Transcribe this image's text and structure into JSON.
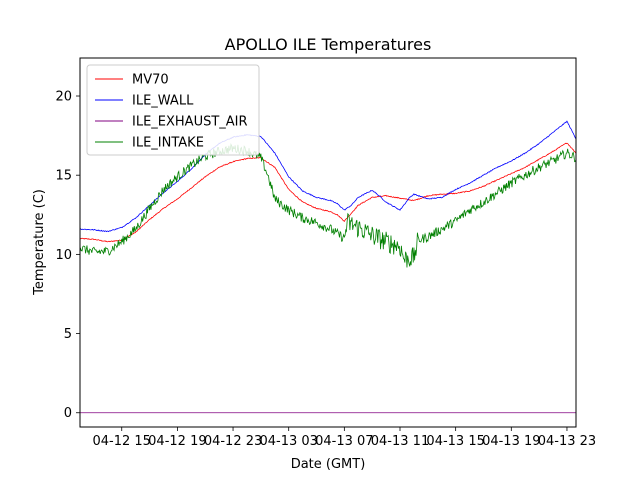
{
  "chart_data": {
    "type": "line",
    "title": "APOLLO ILE Temperatures",
    "xlabel": "Date (GMT)",
    "ylabel": "Temperature (C)",
    "x_unit": "hours since 04-12 12:00 GMT",
    "xlim": [
      0,
      35.65
    ],
    "ylim": [
      -0.9,
      22.4
    ],
    "x_ticks": [
      {
        "x": 3,
        "label": "04-12 15"
      },
      {
        "x": 7,
        "label": "04-12 19"
      },
      {
        "x": 11,
        "label": "04-12 23"
      },
      {
        "x": 15,
        "label": "04-13 03"
      },
      {
        "x": 19,
        "label": "04-13 07"
      },
      {
        "x": 23,
        "label": "04-13 11"
      },
      {
        "x": 27,
        "label": "04-13 15"
      },
      {
        "x": 31,
        "label": "04-13 19"
      },
      {
        "x": 35,
        "label": "04-13 23"
      }
    ],
    "y_ticks": [
      {
        "y": 0,
        "label": "0"
      },
      {
        "y": 5,
        "label": "5"
      },
      {
        "y": 10,
        "label": "10"
      },
      {
        "y": 15,
        "label": "15"
      },
      {
        "y": 20,
        "label": "20"
      }
    ],
    "legend_position": "top-left",
    "series": [
      {
        "name": "MV70",
        "color": "#ff0000",
        "noise": 0.03,
        "points": [
          [
            0,
            11.0
          ],
          [
            1,
            10.95
          ],
          [
            2,
            10.8
          ],
          [
            3,
            10.9
          ],
          [
            4,
            11.4
          ],
          [
            5,
            12.2
          ],
          [
            6,
            12.9
          ],
          [
            7,
            13.5
          ],
          [
            8,
            14.2
          ],
          [
            9,
            14.9
          ],
          [
            10,
            15.5
          ],
          [
            11,
            15.85
          ],
          [
            12,
            16.05
          ],
          [
            13,
            16.1
          ],
          [
            14,
            15.5
          ],
          [
            15,
            14.1
          ],
          [
            16,
            13.3
          ],
          [
            17,
            12.9
          ],
          [
            18,
            12.7
          ],
          [
            18.5,
            12.5
          ],
          [
            19,
            12.1
          ],
          [
            19.5,
            12.6
          ],
          [
            20,
            13.1
          ],
          [
            21,
            13.6
          ],
          [
            22,
            13.7
          ],
          [
            23,
            13.55
          ],
          [
            24,
            13.4
          ],
          [
            25,
            13.7
          ],
          [
            26,
            13.8
          ],
          [
            27,
            13.85
          ],
          [
            28,
            14.0
          ],
          [
            29,
            14.3
          ],
          [
            30,
            14.7
          ],
          [
            31,
            15.1
          ],
          [
            32,
            15.5
          ],
          [
            33,
            16.0
          ],
          [
            34,
            16.5
          ],
          [
            35,
            17.05
          ],
          [
            35.65,
            16.4
          ]
        ]
      },
      {
        "name": "ILE_WALL",
        "color": "#0000ff",
        "noise": 0.03,
        "points": [
          [
            0,
            11.6
          ],
          [
            1,
            11.55
          ],
          [
            2,
            11.45
          ],
          [
            3,
            11.7
          ],
          [
            4,
            12.3
          ],
          [
            5,
            13.1
          ],
          [
            6,
            13.9
          ],
          [
            7,
            14.6
          ],
          [
            8,
            15.4
          ],
          [
            9,
            16.3
          ],
          [
            10,
            17.0
          ],
          [
            11,
            17.4
          ],
          [
            12,
            17.55
          ],
          [
            13,
            17.45
          ],
          [
            14,
            16.4
          ],
          [
            15,
            14.9
          ],
          [
            16,
            14.0
          ],
          [
            17,
            13.6
          ],
          [
            18,
            13.4
          ],
          [
            18.5,
            13.2
          ],
          [
            19,
            12.8
          ],
          [
            19.5,
            13.1
          ],
          [
            20,
            13.6
          ],
          [
            21,
            14.05
          ],
          [
            21.5,
            13.7
          ],
          [
            22,
            13.3
          ],
          [
            23,
            12.8
          ],
          [
            23.7,
            13.6
          ],
          [
            24,
            13.8
          ],
          [
            25,
            13.5
          ],
          [
            26,
            13.6
          ],
          [
            27,
            14.1
          ],
          [
            28,
            14.5
          ],
          [
            29,
            15.0
          ],
          [
            30,
            15.5
          ],
          [
            31,
            15.9
          ],
          [
            32,
            16.4
          ],
          [
            33,
            17.0
          ],
          [
            34,
            17.7
          ],
          [
            35,
            18.4
          ],
          [
            35.65,
            17.3
          ]
        ]
      },
      {
        "name": "ILE_EXHAUST_AIR",
        "color": "#800080",
        "noise": 0,
        "points": [
          [
            0,
            0.0
          ],
          [
            35.65,
            0.0
          ]
        ]
      },
      {
        "name": "ILE_INTAKE",
        "color": "#008000",
        "noise": 0.3,
        "points": [
          [
            0,
            10.4
          ],
          [
            1,
            10.15
          ],
          [
            2,
            10.2
          ],
          [
            3,
            10.8
          ],
          [
            4,
            11.6
          ],
          [
            5,
            12.9
          ],
          [
            6,
            14.1
          ],
          [
            7,
            14.9
          ],
          [
            8,
            15.6
          ],
          [
            9,
            16.2
          ],
          [
            10,
            16.5
          ],
          [
            11,
            16.7
          ],
          [
            12,
            16.55
          ],
          [
            13,
            16.1
          ],
          [
            13.5,
            15.0
          ],
          [
            14,
            13.5
          ],
          [
            15,
            12.8
          ],
          [
            16,
            12.3
          ],
          [
            17,
            12.0
          ],
          [
            18,
            11.6
          ],
          [
            19,
            11.0
          ],
          [
            19.2,
            12.0
          ],
          [
            20,
            11.7
          ],
          [
            21,
            11.2
          ],
          [
            22,
            10.8
          ],
          [
            23,
            10.5
          ],
          [
            23.3,
            9.7
          ],
          [
            24,
            9.8
          ],
          [
            24.3,
            10.9
          ],
          [
            25,
            11.1
          ],
          [
            26,
            11.6
          ],
          [
            27,
            12.1
          ],
          [
            28,
            12.8
          ],
          [
            29,
            13.3
          ],
          [
            30,
            13.9
          ],
          [
            31,
            14.5
          ],
          [
            32,
            15.0
          ],
          [
            33,
            15.5
          ],
          [
            34,
            15.9
          ],
          [
            35,
            16.4
          ],
          [
            35.65,
            16.1
          ]
        ]
      }
    ]
  }
}
